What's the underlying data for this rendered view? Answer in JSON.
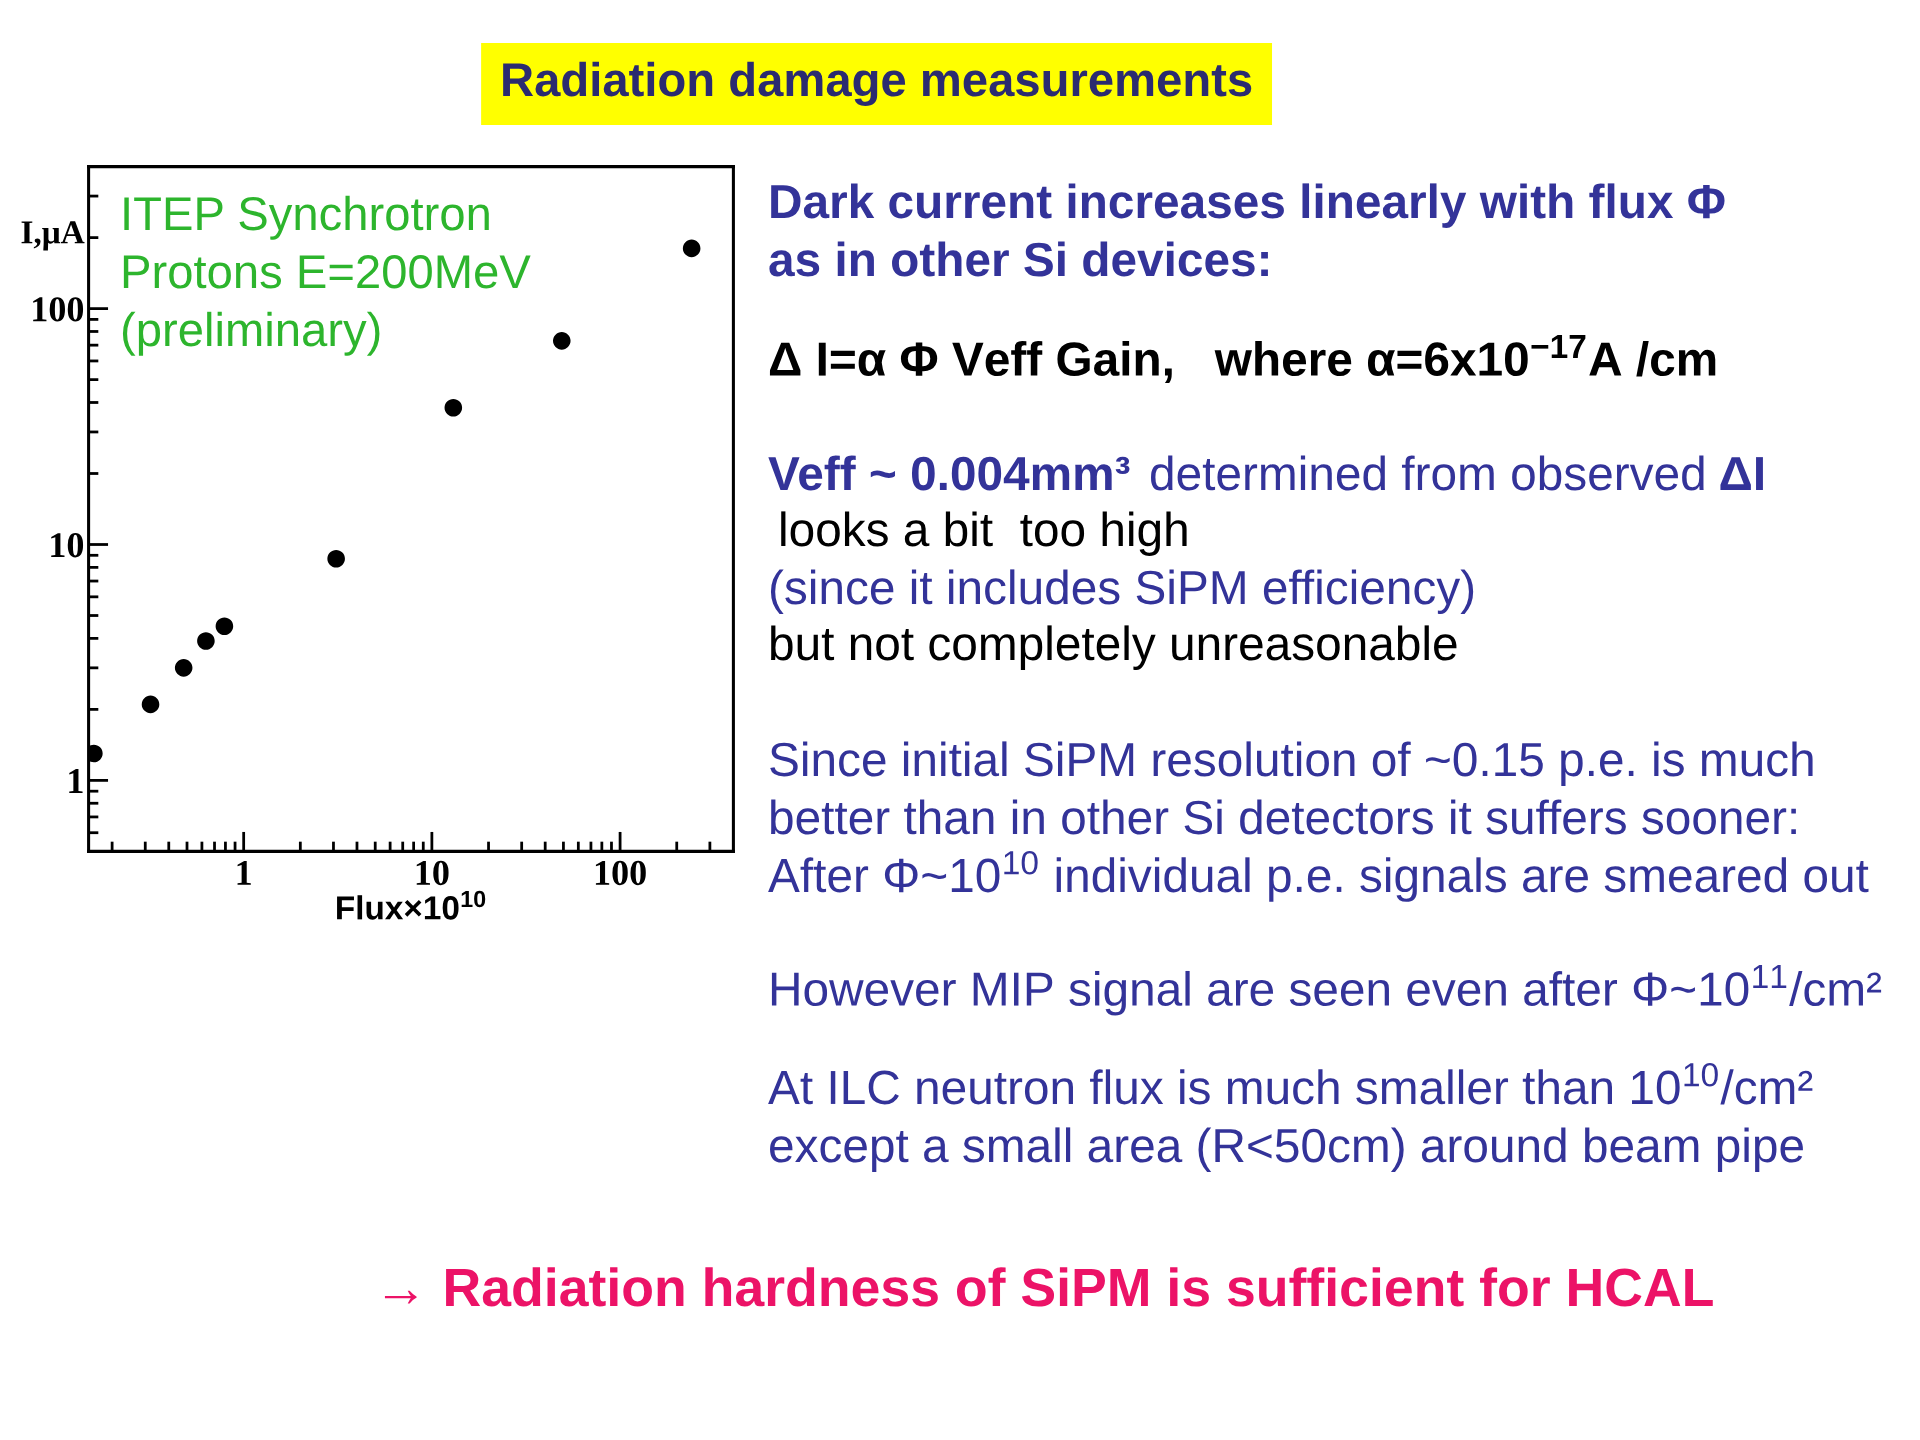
{
  "chart_data": {
    "type": "scatter",
    "title": "Radiation damage measurements",
    "xlabel": "Flux×10$^{10}$",
    "ylabel": "I,μA",
    "log": "xy",
    "marker": "circle",
    "color": "#000000",
    "x": [
      0.16,
      0.32,
      0.48,
      0.63,
      0.79,
      3.1,
      13,
      49,
      240
    ],
    "values": [
      1.3,
      2.1,
      3.0,
      3.9,
      4.5,
      8.7,
      38,
      73,
      180
    ],
    "xlim": [
      0.15,
      400
    ],
    "ylim": [
      0.5,
      400
    ],
    "xticks": [
      {
        "value": 0.2,
        "label": null
      },
      {
        "value": 0.3,
        "label": null
      },
      {
        "value": 0.4,
        "label": null
      },
      {
        "value": 0.5,
        "label": null
      },
      {
        "value": 0.6,
        "label": null
      },
      {
        "value": 0.7,
        "label": null
      },
      {
        "value": 0.8,
        "label": null
      },
      {
        "value": 0.9,
        "label": null
      },
      1,
      {
        "value": 2,
        "label": null
      },
      {
        "value": 3,
        "label": null
      },
      {
        "value": 4,
        "label": null
      },
      {
        "value": 5,
        "label": null
      },
      {
        "value": 6,
        "label": null
      },
      {
        "value": 7,
        "label": null
      },
      {
        "value": 8,
        "label": null
      },
      {
        "value": 9,
        "label": null
      },
      10,
      {
        "value": 20,
        "label": null
      },
      {
        "value": 30,
        "label": null
      },
      {
        "value": 40,
        "label": null
      },
      {
        "value": 50,
        "label": null
      },
      {
        "value": 60,
        "label": null
      },
      {
        "value": 70,
        "label": null
      },
      {
        "value": 80,
        "label": null
      },
      {
        "value": 90,
        "label": null
      },
      100,
      {
        "value": 200,
        "label": null
      },
      {
        "value": 300,
        "label": null
      }
    ],
    "yticks": [
      {
        "value": 0.6,
        "label": null
      },
      {
        "value": 0.7,
        "label": null
      },
      {
        "value": 0.8,
        "label": null
      },
      {
        "value": 0.9,
        "label": null
      },
      1,
      {
        "value": 2,
        "label": null
      },
      {
        "value": 3,
        "label": null
      },
      {
        "value": 4,
        "label": null
      },
      {
        "value": 5,
        "label": null
      },
      {
        "value": 6,
        "label": null
      },
      {
        "value": 7,
        "label": null
      },
      {
        "value": 8,
        "label": null
      },
      {
        "value": 9,
        "label": null
      },
      10,
      {
        "value": 20,
        "label": null
      },
      {
        "value": 30,
        "label": null
      },
      {
        "value": 40,
        "label": null
      },
      {
        "value": 50,
        "label": null
      },
      {
        "value": 60,
        "label": null
      },
      {
        "value": 70,
        "label": null
      },
      {
        "value": 80,
        "label": null
      },
      {
        "value": 90,
        "label": null
      },
      100,
      {
        "value": 200,
        "label": null
      },
      {
        "value": 300,
        "label": null
      }
    ],
    "annotations": [
      "ITEP Synchrotron",
      "Protons E=200MeV",
      "(preliminary)",
      "Dark current increases linearly with flux Φ",
      "as in other Si devices:",
      "Δ I=α Φ Veff Gain,   where α=6x10$^{−17}$A /cm",
      "Veff ~ 0.004mm³",
      "determined from observed",
      "ΔI",
      "looks a bit  too high",
      "(since it includes SiPM efficiency)",
      "but not completely unreasonable",
      "Since initial SiPM resolution of ~0.15 p.e. is much",
      "better than in other Si detectors it suffers sooner:",
      "After Φ~10$^{10}$ individual p.e. signals are smeared out",
      "However MIP signal are seen even after Φ~10$^{11}$/cm²",
      "At ILC neutron flux is much smaller than 10$^{10}$/cm²",
      "except a small area (R<50cm) around beam pipe",
      "→ Radiation hardness of SiPM is sufficient for HCAL"
    ]
  }
}
